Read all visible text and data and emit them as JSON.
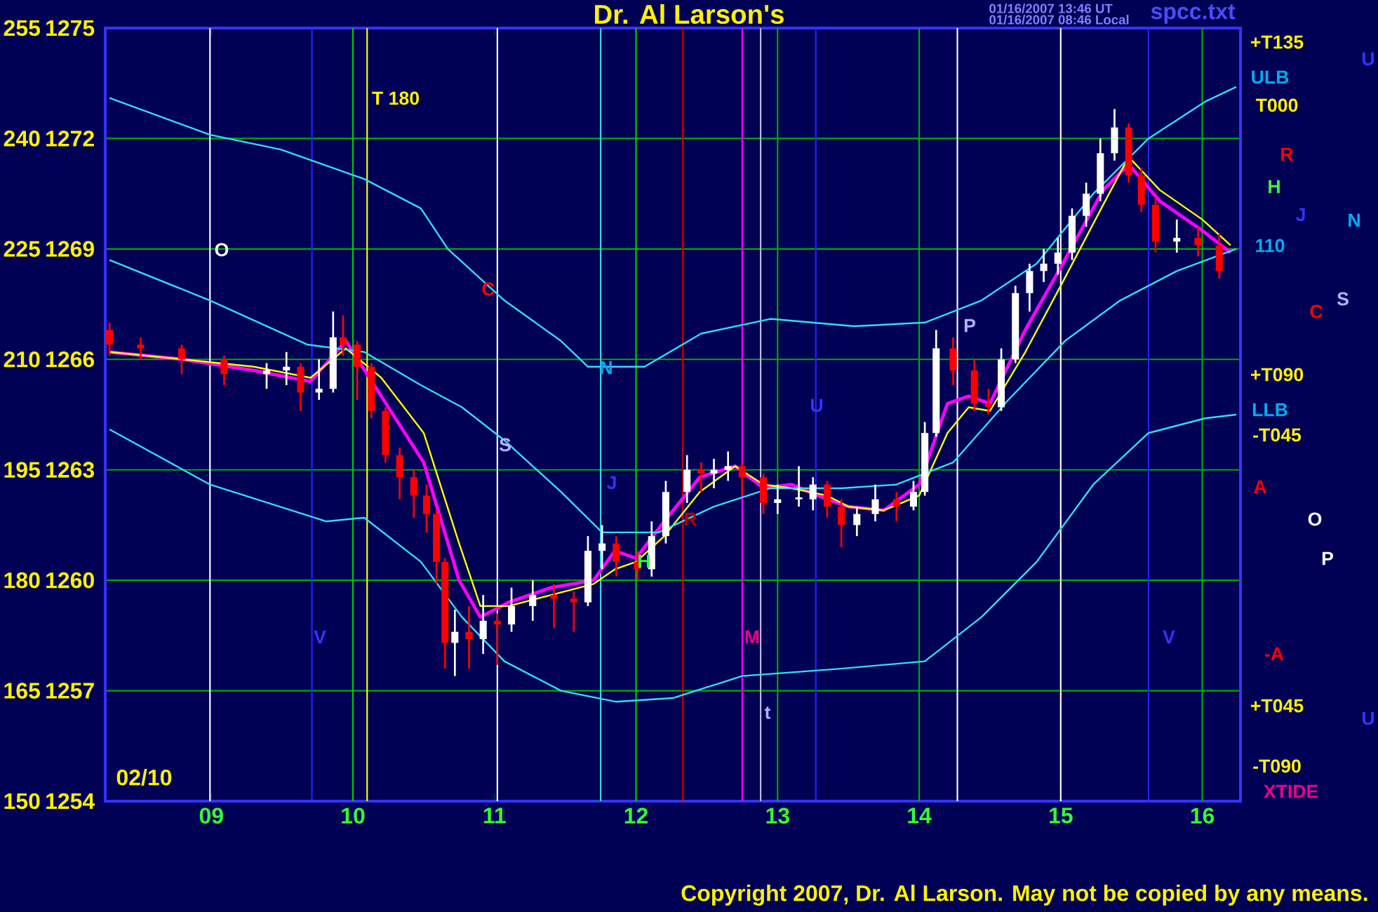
{
  "chart_data": {
    "type": "candlestick",
    "title": "Dr. Al Larson's",
    "x": [
      8.28,
      8.5,
      8.79,
      9.09,
      9.39,
      9.53,
      9.63,
      9.76,
      9.86,
      9.93,
      10.03,
      10.13,
      10.23,
      10.33,
      10.43,
      10.52,
      10.59,
      10.65,
      10.72,
      10.82,
      10.92,
      11.02,
      11.12,
      11.27,
      11.42,
      11.56,
      11.66,
      11.76,
      11.86,
      12.01,
      12.11,
      12.21,
      12.36,
      12.46,
      12.55,
      12.65,
      12.75,
      12.9,
      13.0,
      13.15,
      13.25,
      13.35,
      13.45,
      13.56,
      13.69,
      13.84,
      13.96,
      14.04,
      14.12,
      14.24,
      14.39,
      14.49,
      14.58,
      14.68,
      14.78,
      14.88,
      14.98,
      15.08,
      15.18,
      15.28,
      15.38,
      15.48,
      15.57,
      15.67,
      15.82,
      15.97,
      16.12
    ],
    "ohlc": [
      [
        1266.8,
        1267.0,
        1266.1,
        1266.4
      ],
      [
        1266.4,
        1266.6,
        1266.0,
        1266.3
      ],
      [
        1266.3,
        1266.4,
        1265.6,
        1266.0
      ],
      [
        1266.0,
        1266.1,
        1265.3,
        1265.6
      ],
      [
        1265.6,
        1265.9,
        1265.2,
        1265.7
      ],
      [
        1265.7,
        1266.2,
        1265.3,
        1265.8
      ],
      [
        1265.8,
        1265.9,
        1264.6,
        1265.1
      ],
      [
        1265.1,
        1266.0,
        1264.9,
        1265.2
      ],
      [
        1265.2,
        1267.3,
        1265.1,
        1266.6
      ],
      [
        1266.6,
        1267.2,
        1266.1,
        1266.4
      ],
      [
        1266.4,
        1266.5,
        1264.9,
        1265.8
      ],
      [
        1265.8,
        1265.9,
        1264.4,
        1264.6
      ],
      [
        1264.6,
        1264.7,
        1263.2,
        1263.4
      ],
      [
        1263.4,
        1263.6,
        1262.2,
        1262.8
      ],
      [
        1262.8,
        1263.0,
        1261.7,
        1262.3
      ],
      [
        1262.3,
        1262.6,
        1261.3,
        1261.8
      ],
      [
        1261.8,
        1261.9,
        1259.9,
        1260.5
      ],
      [
        1260.5,
        1260.6,
        1257.6,
        1258.3
      ],
      [
        1258.3,
        1259.2,
        1257.4,
        1258.6
      ],
      [
        1258.6,
        1259.3,
        1257.6,
        1258.4
      ],
      [
        1258.4,
        1259.6,
        1258.0,
        1258.9
      ],
      [
        1258.9,
        1259.1,
        1257.7,
        1258.8
      ],
      [
        1258.8,
        1259.8,
        1258.6,
        1259.3
      ],
      [
        1259.3,
        1260.0,
        1258.9,
        1259.6
      ],
      [
        1259.6,
        1259.9,
        1258.7,
        1259.5
      ],
      [
        1259.5,
        1259.7,
        1258.6,
        1259.4
      ],
      [
        1259.4,
        1261.2,
        1259.3,
        1260.8
      ],
      [
        1260.8,
        1261.5,
        1260.3,
        1261.0
      ],
      [
        1261.0,
        1261.2,
        1260.1,
        1260.5
      ],
      [
        1260.5,
        1260.8,
        1260.0,
        1260.3
      ],
      [
        1260.3,
        1261.6,
        1260.1,
        1261.2
      ],
      [
        1261.2,
        1262.7,
        1261.0,
        1262.4
      ],
      [
        1262.4,
        1263.4,
        1262.1,
        1263.0
      ],
      [
        1263.0,
        1263.2,
        1262.4,
        1262.9
      ],
      [
        1262.9,
        1263.3,
        1262.5,
        1263.0
      ],
      [
        1263.0,
        1263.5,
        1262.7,
        1263.1
      ],
      [
        1263.1,
        1263.2,
        1262.3,
        1262.8
      ],
      [
        1262.8,
        1262.9,
        1261.8,
        1262.1
      ],
      [
        1262.1,
        1262.6,
        1261.8,
        1262.2
      ],
      [
        1262.2,
        1263.1,
        1262.0,
        1262.2
      ],
      [
        1262.2,
        1262.8,
        1261.9,
        1262.6
      ],
      [
        1262.6,
        1262.7,
        1261.7,
        1262.0
      ],
      [
        1262.0,
        1262.2,
        1260.9,
        1261.5
      ],
      [
        1261.5,
        1262.0,
        1261.2,
        1261.8
      ],
      [
        1261.8,
        1262.6,
        1261.6,
        1262.2
      ],
      [
        1262.2,
        1262.4,
        1261.6,
        1262.0
      ],
      [
        1262.0,
        1262.7,
        1261.9,
        1262.4
      ],
      [
        1262.4,
        1264.3,
        1262.3,
        1264.0
      ],
      [
        1264.0,
        1266.8,
        1263.9,
        1266.3
      ],
      [
        1266.3,
        1266.6,
        1265.3,
        1265.7
      ],
      [
        1265.7,
        1266.0,
        1264.6,
        1264.8
      ],
      [
        1264.8,
        1265.2,
        1264.5,
        1264.7
      ],
      [
        1264.7,
        1266.3,
        1264.6,
        1266.0
      ],
      [
        1266.0,
        1268.0,
        1265.9,
        1267.8
      ],
      [
        1267.8,
        1268.6,
        1267.3,
        1268.4
      ],
      [
        1268.4,
        1269.0,
        1268.1,
        1268.6
      ],
      [
        1268.6,
        1269.3,
        1268.3,
        1268.9
      ],
      [
        1268.9,
        1270.1,
        1268.7,
        1269.9
      ],
      [
        1269.9,
        1270.8,
        1269.6,
        1270.5
      ],
      [
        1270.5,
        1272.0,
        1270.3,
        1271.6
      ],
      [
        1271.6,
        1272.8,
        1271.4,
        1272.3
      ],
      [
        1272.3,
        1272.4,
        1270.8,
        1271.0
      ],
      [
        1271.0,
        1271.2,
        1270.0,
        1270.2
      ],
      [
        1270.2,
        1270.4,
        1268.9,
        1269.2
      ],
      [
        1269.2,
        1269.8,
        1268.9,
        1269.3
      ],
      [
        1269.3,
        1269.6,
        1268.8,
        1269.1
      ],
      [
        1269.1,
        1269.4,
        1268.2,
        1268.4
      ]
    ],
    "colors": [
      "#ff0000",
      "#ff0000",
      "#ff0000",
      "#ff0000",
      "#ffffff",
      "#ffffff",
      "#ff0000",
      "#ffffff",
      "#ffffff",
      "#ff0000",
      "#ff0000",
      "#ff0000",
      "#ff0000",
      "#ff0000",
      "#ff0000",
      "#ff0000",
      "#ff0000",
      "#ff0000",
      "#ffffff",
      "#ff0000",
      "#ffffff",
      "#ff0000",
      "#ffffff",
      "#ffffff",
      "#ff0000",
      "#ff0000",
      "#ffffff",
      "#ffffff",
      "#ff0000",
      "#ff0000",
      "#ffffff",
      "#ffffff",
      "#ffffff",
      "#ff0000",
      "#ffffff",
      "#ffffff",
      "#ff0000",
      "#ff0000",
      "#ffffff",
      "#ffffff",
      "#ffffff",
      "#ff0000",
      "#ff0000",
      "#ffffff",
      "#ffffff",
      "#ff0000",
      "#ffffff",
      "#ffffff",
      "#ffffff",
      "#ff0000",
      "#ff0000",
      "#ff0000",
      "#ffffff",
      "#ffffff",
      "#ffffff",
      "#ffffff",
      "#ffffff",
      "#ffffff",
      "#ffffff",
      "#ffffff",
      "#ffffff",
      "#ff0000",
      "#ff0000",
      "#ff0000",
      "#ffffff",
      "#ff0000",
      "#ff0000"
    ],
    "series": [
      {
        "type": "line",
        "color": "#ff00ff",
        "x": [
          8.28,
          8.8,
          9.3,
          9.7,
          9.95,
          10.2,
          10.5,
          10.75,
          10.9,
          11.1,
          11.4,
          11.7,
          11.85,
          12.0,
          12.2,
          12.45,
          12.7,
          12.9,
          13.1,
          13.35,
          13.5,
          13.75,
          14.0,
          14.2,
          14.35,
          14.5,
          14.75,
          15.0,
          15.3,
          15.48,
          15.7,
          16.0,
          16.2
        ],
        "values": [
          1266.2,
          1266.0,
          1265.7,
          1265.4,
          1266.5,
          1265.0,
          1263.2,
          1260.0,
          1259.0,
          1259.4,
          1259.8,
          1260.0,
          1260.8,
          1260.6,
          1261.6,
          1262.8,
          1263.1,
          1262.5,
          1262.6,
          1262.2,
          1262.0,
          1261.9,
          1262.6,
          1264.8,
          1265.0,
          1264.8,
          1266.8,
          1268.5,
          1270.6,
          1271.3,
          1270.3,
          1269.5,
          1268.9
        ]
      },
      {
        "type": "line",
        "color": "#ffff00",
        "x": [
          8.28,
          8.8,
          9.3,
          9.7,
          9.95,
          10.2,
          10.5,
          10.75,
          10.9,
          11.1,
          11.4,
          11.7,
          11.85,
          12.0,
          12.2,
          12.45,
          12.7,
          12.9,
          13.1,
          13.35,
          13.5,
          13.75,
          14.0,
          14.2,
          14.35,
          14.5,
          14.75,
          15.0,
          15.3,
          15.48,
          15.7,
          16.0,
          16.2
        ],
        "values": [
          1266.2,
          1266.0,
          1265.8,
          1265.5,
          1266.3,
          1265.5,
          1264.0,
          1261.0,
          1259.3,
          1259.3,
          1259.6,
          1259.9,
          1260.3,
          1260.5,
          1261.2,
          1262.4,
          1263.1,
          1262.6,
          1262.5,
          1262.3,
          1262.0,
          1261.9,
          1262.3,
          1264.0,
          1264.7,
          1264.6,
          1266.2,
          1268.0,
          1270.2,
          1271.5,
          1270.6,
          1269.8,
          1269.1
        ]
      },
      {
        "type": "line",
        "color": "#33ddee",
        "x": [
          8.28,
          8.99,
          9.49,
          10.08,
          10.48,
          10.67,
          11.07,
          11.47,
          11.66,
          12.06,
          12.46,
          12.95,
          13.54,
          14.04,
          14.44,
          14.83,
          15.23,
          15.62,
          16.02,
          16.24
        ],
        "values": [
          1273.1,
          1272.1,
          1271.7,
          1270.9,
          1270.1,
          1269.0,
          1267.6,
          1266.5,
          1265.8,
          1265.8,
          1266.7,
          1267.1,
          1266.9,
          1267.0,
          1267.6,
          1268.6,
          1270.5,
          1272.0,
          1273.0,
          1273.4
        ]
      },
      {
        "type": "line",
        "color": "#33ddee",
        "x": [
          8.28,
          8.99,
          9.68,
          10.08,
          10.48,
          10.77,
          11.07,
          11.47,
          11.76,
          12.16,
          12.55,
          12.95,
          13.45,
          13.84,
          14.24,
          14.63,
          15.03,
          15.42,
          15.82,
          16.24
        ],
        "values": [
          1268.7,
          1267.6,
          1266.4,
          1266.2,
          1265.3,
          1264.7,
          1263.8,
          1262.4,
          1261.3,
          1261.3,
          1262.0,
          1262.5,
          1262.5,
          1262.6,
          1263.2,
          1264.9,
          1266.5,
          1267.6,
          1268.4,
          1269.0
        ]
      },
      {
        "type": "line",
        "color": "#33ddee",
        "x": [
          8.28,
          8.99,
          9.81,
          10.08,
          10.48,
          10.77,
          11.07,
          11.47,
          11.86,
          12.26,
          12.75,
          13.45,
          14.04,
          14.44,
          14.83,
          15.23,
          15.62,
          16.02,
          16.24
        ],
        "values": [
          1264.1,
          1262.6,
          1261.6,
          1261.7,
          1260.5,
          1259.0,
          1257.8,
          1257.0,
          1256.7,
          1256.8,
          1257.4,
          1257.6,
          1257.8,
          1259.0,
          1260.5,
          1262.6,
          1264.0,
          1264.4,
          1264.5
        ]
      }
    ],
    "xlim": [
      8.25,
      16.27
    ],
    "xticks": [
      {
        "value": 9,
        "label": "09"
      },
      {
        "value": 10,
        "label": "10"
      },
      {
        "value": 11,
        "label": "11"
      },
      {
        "value": 12,
        "label": "12"
      },
      {
        "value": 13,
        "label": "13"
      },
      {
        "value": 14,
        "label": "14"
      },
      {
        "value": 15,
        "label": "15"
      },
      {
        "value": 16,
        "label": "16"
      }
    ],
    "ylim": [
      1254,
      1275
    ],
    "yticks": [
      1254,
      1257,
      1260,
      1263,
      1266,
      1269,
      1272,
      1275
    ],
    "y2lim": [
      150,
      255
    ],
    "y2ticks": [
      150,
      165,
      180,
      195,
      210,
      225,
      240,
      255
    ],
    "grid": "y",
    "ref_lines": [
      {
        "axis": "x",
        "value": 8.99,
        "color": "#ffffff"
      },
      {
        "axis": "x",
        "value": 9.71,
        "color": "#2222ff"
      },
      {
        "axis": "x",
        "value": 10.0,
        "color": "#00cc00"
      },
      {
        "axis": "x",
        "value": 10.1,
        "color": "#ffff00"
      },
      {
        "axis": "x",
        "value": 11.02,
        "color": "#ffffff"
      },
      {
        "axis": "x",
        "value": 11.75,
        "color": "#33ddee"
      },
      {
        "axis": "x",
        "value": 12.0,
        "color": "#00cc00"
      },
      {
        "axis": "x",
        "value": 12.33,
        "color": "#cc0000"
      },
      {
        "axis": "x",
        "value": 12.75,
        "color": "#ff00ff"
      },
      {
        "axis": "x",
        "value": 12.88,
        "color": "#bbbbdd"
      },
      {
        "axis": "x",
        "value": 13.0,
        "color": "#00aa00"
      },
      {
        "axis": "x",
        "value": 13.27,
        "color": "#2222ff"
      },
      {
        "axis": "x",
        "value": 14.0,
        "color": "#00aa00"
      },
      {
        "axis": "x",
        "value": 14.27,
        "color": "#ffffff"
      },
      {
        "axis": "x",
        "value": 15.0,
        "color": "#ffffff"
      },
      {
        "axis": "x",
        "value": 15.62,
        "color": "#2222ff"
      },
      {
        "axis": "x",
        "value": 16.0,
        "color": "#00aa00"
      }
    ],
    "annotations": [
      "01/16/2007 13:46 UT",
      "01/16/2007 08:46 Local",
      "spcc.txt",
      "02/10",
      "Copyright 2007, Dr. Al Larson. May not be copied by any means.",
      "T 180",
      "O",
      "C",
      "N",
      "S",
      "V",
      "J",
      "R",
      "H",
      "M",
      "t",
      "U",
      "P",
      "V",
      "+T135",
      "U",
      "ULB",
      "T000",
      "R",
      "H",
      "J",
      "N",
      "110",
      "S",
      "C",
      "+T090",
      "LLB",
      "-T045",
      "A",
      "O",
      "P",
      "-A",
      "+T045",
      "U",
      "-T090",
      "XTIDE"
    ]
  }
}
